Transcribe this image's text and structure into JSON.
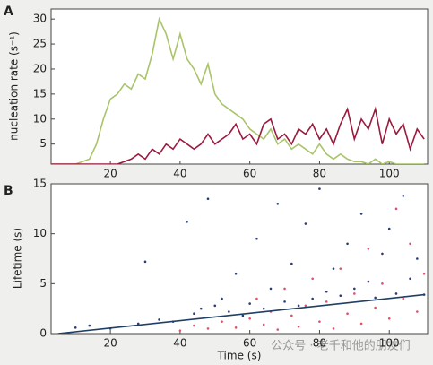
{
  "chart_data": [
    {
      "type": "line",
      "label": "A",
      "ylabel": "nucleation rate (s⁻¹)",
      "xlim": [
        3,
        111
      ],
      "ylim": [
        1,
        32
      ],
      "xticks": [
        20,
        40,
        60,
        80,
        100
      ],
      "yticks": [
        5,
        10,
        15,
        20,
        25,
        30
      ],
      "series": [
        {
          "color": "#a9c46a",
          "x": [
            0,
            2,
            4,
            6,
            8,
            10,
            12,
            14,
            16,
            18,
            20,
            22,
            24,
            26,
            28,
            30,
            32,
            34,
            36,
            38,
            40,
            42,
            44,
            46,
            48,
            50,
            52,
            54,
            56,
            58,
            60,
            62,
            64,
            66,
            68,
            70,
            72,
            74,
            76,
            78,
            80,
            82,
            84,
            86,
            88,
            90,
            92,
            94,
            96,
            98,
            100,
            102,
            104,
            106,
            108,
            110
          ],
          "values": [
            1,
            1,
            1,
            1,
            1,
            1,
            1.5,
            2,
            5,
            10,
            14,
            15,
            17,
            16,
            19,
            18,
            23,
            30,
            27,
            22,
            27,
            22,
            20,
            17,
            21,
            15,
            13,
            12,
            11,
            10,
            8,
            7,
            6,
            8,
            5,
            6,
            4,
            5,
            4,
            3,
            5,
            3,
            2,
            3,
            2,
            1.5,
            1.5,
            1,
            2,
            1,
            1.5,
            1,
            1,
            1,
            1,
            1
          ]
        },
        {
          "color": "#9b1b3f",
          "x": [
            0,
            2,
            4,
            6,
            8,
            10,
            12,
            14,
            16,
            18,
            20,
            22,
            24,
            26,
            28,
            30,
            32,
            34,
            36,
            38,
            40,
            42,
            44,
            46,
            48,
            50,
            52,
            54,
            56,
            58,
            60,
            62,
            64,
            66,
            68,
            70,
            72,
            74,
            76,
            78,
            80,
            82,
            84,
            86,
            88,
            90,
            92,
            94,
            96,
            98,
            100,
            102,
            104,
            106,
            108,
            110
          ],
          "values": [
            1,
            1,
            1,
            1,
            1,
            1,
            1,
            1,
            1,
            1,
            1,
            1,
            1.5,
            2,
            3,
            2,
            4,
            3,
            5,
            4,
            6,
            5,
            4,
            5,
            7,
            5,
            6,
            7,
            9,
            6,
            7,
            5,
            9,
            10,
            6,
            7,
            5,
            8,
            7,
            9,
            6,
            8,
            5,
            9,
            12,
            6,
            10,
            8,
            12,
            5,
            10,
            7,
            9,
            4,
            8,
            6
          ]
        }
      ]
    },
    {
      "type": "scatter",
      "label": "B",
      "xlabel": "Time (s)",
      "ylabel": "Lifetime (s)",
      "xlim": [
        3,
        111
      ],
      "ylim": [
        0,
        15
      ],
      "xticks": [
        20,
        40,
        60,
        80,
        100
      ],
      "yticks": [
        0,
        5,
        10,
        15
      ],
      "series": [
        {
          "color": "#2a3d7a",
          "kind": "points",
          "x": [
            10,
            14,
            20,
            28,
            30,
            34,
            38,
            42,
            44,
            46,
            48,
            50,
            52,
            54,
            56,
            58,
            60,
            62,
            64,
            66,
            68,
            70,
            72,
            74,
            76,
            78,
            80,
            82,
            84,
            86,
            88,
            90,
            92,
            94,
            96,
            98,
            100,
            102,
            104,
            106,
            108,
            110
          ],
          "values": [
            0.6,
            0.8,
            0.5,
            1.0,
            7.2,
            1.4,
            1.2,
            11.2,
            2.0,
            2.5,
            13.5,
            2.8,
            3.5,
            2.2,
            6.0,
            1.8,
            3.0,
            9.5,
            2.5,
            4.5,
            13.0,
            3.2,
            7.0,
            2.8,
            11.0,
            3.5,
            14.5,
            4.2,
            6.5,
            3.8,
            9.0,
            4.5,
            12.0,
            5.2,
            3.6,
            8.0,
            10.5,
            4.0,
            13.8,
            5.5,
            7.5,
            3.9
          ]
        },
        {
          "color": "#e0506a",
          "kind": "points",
          "x": [
            40,
            44,
            48,
            52,
            56,
            60,
            62,
            64,
            66,
            68,
            70,
            72,
            74,
            76,
            78,
            80,
            82,
            84,
            86,
            88,
            90,
            92,
            94,
            96,
            98,
            100,
            102,
            104,
            106,
            108,
            110
          ],
          "values": [
            0.3,
            0.8,
            0.5,
            1.2,
            0.6,
            1.5,
            3.5,
            0.9,
            2.2,
            0.4,
            4.5,
            1.8,
            0.7,
            2.8,
            5.5,
            1.2,
            3.2,
            0.5,
            6.5,
            2.0,
            4.0,
            1.0,
            8.5,
            2.6,
            5.0,
            1.5,
            12.5,
            3.5,
            9.0,
            2.2,
            6.0
          ]
        },
        {
          "color": "#1f3f66",
          "kind": "line",
          "x": [
            5,
            110
          ],
          "values": [
            0,
            3.9
          ]
        }
      ]
    }
  ],
  "watermark": "公众号 · 老千和他的朋友们"
}
